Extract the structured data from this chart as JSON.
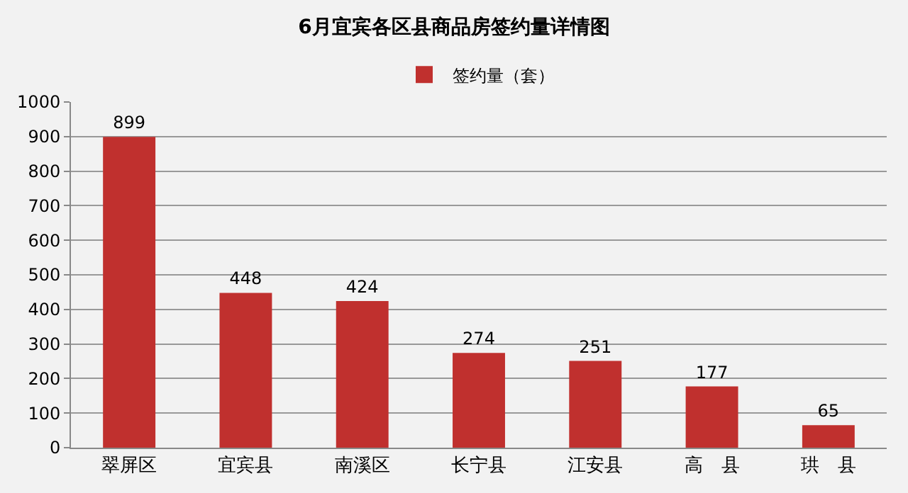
{
  "chart_data": {
    "type": "bar",
    "title": "6月宜宾各区县商品房签约量详情图",
    "categories": [
      "翠屏区",
      "宜宾县",
      "南溪区",
      "长宁县",
      "江安县",
      "高　县",
      "珙　县"
    ],
    "series": [
      {
        "name": "签约量（套）",
        "color": "#c0302e",
        "values": [
          899,
          448,
          424,
          274,
          251,
          177,
          65
        ]
      }
    ],
    "ylim": [
      0,
      1000
    ],
    "yticks": [
      0,
      100,
      200,
      300,
      400,
      500,
      600,
      700,
      800,
      900,
      1000
    ],
    "grid": "y",
    "legend": "top",
    "data_labels": true
  }
}
